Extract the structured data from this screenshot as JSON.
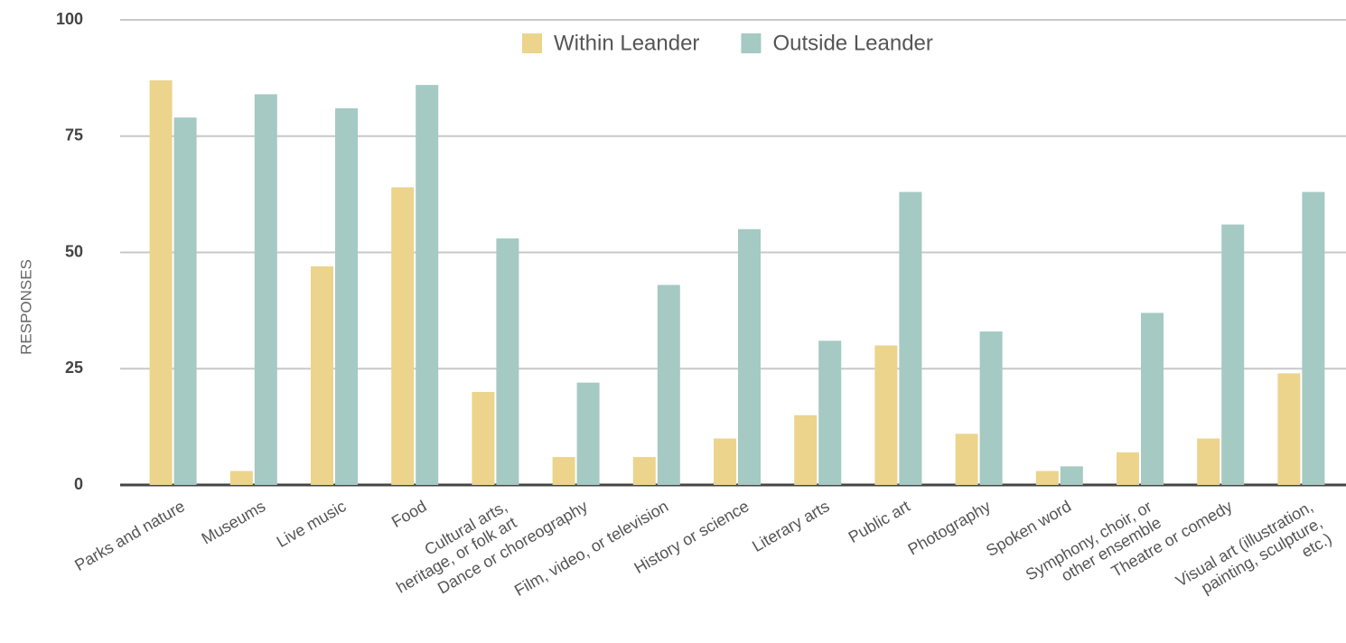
{
  "chart_data": {
    "type": "bar",
    "y_label": "RESPONSES",
    "categories": [
      "Parks and nature",
      "Museums",
      "Live music",
      "Food",
      "Cultural arts,\nheritage, or folk art",
      "Dance or choreography",
      "Film, video, or television",
      "History or science",
      "Literary arts",
      "Public art",
      "Photography",
      "Spoken word",
      "Symphony, choir, or\nother ensemble",
      "Theatre or comedy",
      "Visual art (illustration,\npainting, sculpture,\netc.)"
    ],
    "series": [
      {
        "name": "Within Leander",
        "color": "#ecd48d",
        "values": [
          87,
          3,
          47,
          64,
          20,
          6,
          6,
          10,
          15,
          30,
          11,
          3,
          7,
          10,
          24
        ]
      },
      {
        "name": "Outside Leander",
        "color": "#a5c9c3",
        "values": [
          79,
          84,
          81,
          86,
          53,
          22,
          43,
          55,
          31,
          63,
          33,
          4,
          37,
          56,
          63
        ]
      }
    ],
    "ylim": [
      0,
      100
    ],
    "yticks": [
      0,
      25,
      50,
      75,
      100
    ],
    "grid": true,
    "legend": "top"
  }
}
